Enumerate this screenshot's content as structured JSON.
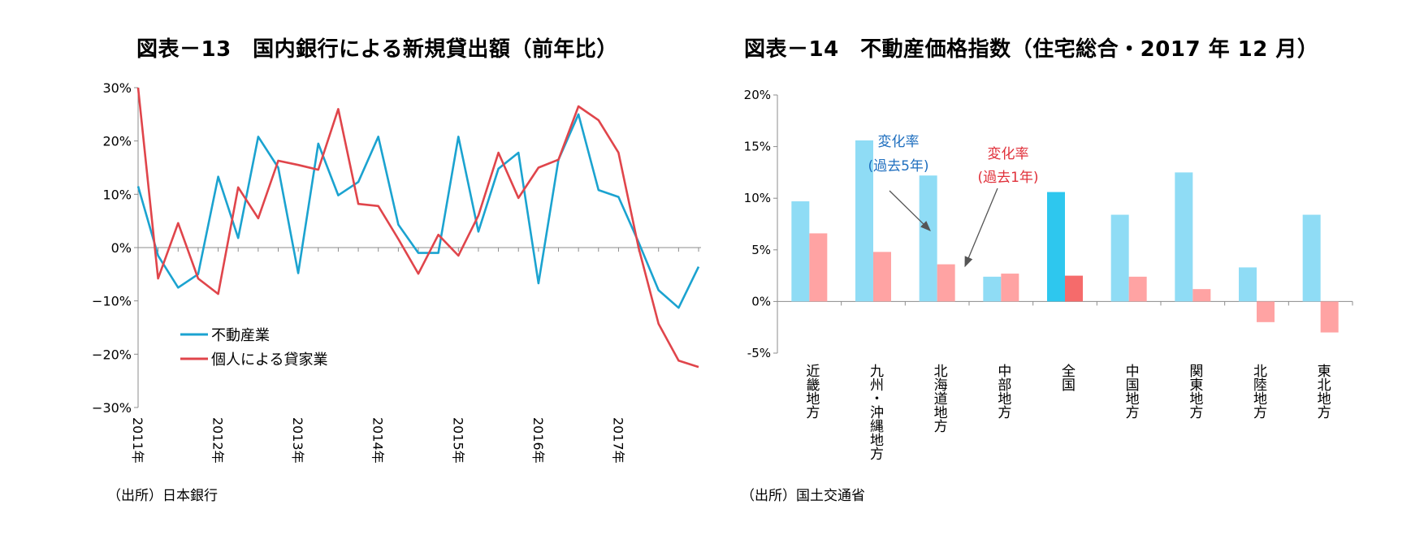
{
  "left": {
    "title": "図表－13　国内銀行による新規貸出額（前年比）",
    "source": "（出所）日本銀行",
    "chart_data": {
      "type": "line",
      "ylim": [
        -30,
        30
      ],
      "y_ticks": [
        "30%",
        "20%",
        "10%",
        "0%",
        "−10%",
        "−20%",
        "−30%"
      ],
      "x_ticks": [
        "2011年",
        "2012年",
        "2013年",
        "2014年",
        "2015年",
        "2016年",
        "2017年"
      ],
      "x_tick_index": [
        0,
        4,
        8,
        12,
        16,
        20,
        24
      ],
      "grid": false,
      "legend_position": "lower-left",
      "series": [
        {
          "name": "不動産業",
          "color": "#1ba3d0",
          "values": [
            11.5,
            -1.5,
            -7.5,
            -5.0,
            13.3,
            1.8,
            20.8,
            15.0,
            -4.8,
            19.5,
            9.8,
            12.3,
            20.8,
            4.3,
            -1.0,
            -1.0,
            20.8,
            3.0,
            14.8,
            17.8,
            -6.7,
            16.5,
            25.0,
            10.8,
            9.5,
            1.0,
            -8.0,
            -11.3,
            -3.6
          ]
        },
        {
          "name": "個人による貸家業",
          "color": "#e0454b",
          "values": [
            30.0,
            -5.8,
            4.6,
            -5.8,
            -8.7,
            11.3,
            5.5,
            16.3,
            15.5,
            14.6,
            26.0,
            8.2,
            7.8,
            1.6,
            -4.9,
            2.4,
            -1.5,
            6.0,
            17.8,
            9.3,
            15.0,
            16.5,
            26.5,
            23.9,
            17.8,
            0.0,
            -14.3,
            -21.2,
            -22.4
          ]
        }
      ]
    }
  },
  "right": {
    "title": "図表－14　不動産価格指数（住宅総合・2017 年 12 月）",
    "source": "（出所）国土交通省",
    "chart_data": {
      "type": "bar",
      "ylim": [
        -5,
        20
      ],
      "y_ticks": [
        "20%",
        "15%",
        "10%",
        "5%",
        "0%",
        "-5%"
      ],
      "categories": [
        "近畿地方",
        "九州・沖縄地方",
        "北海道地方",
        "中部地方",
        "全国",
        "中国地方",
        "関東地方",
        "北陸地方",
        "東北地方"
      ],
      "grid": false,
      "series": [
        {
          "name": "変化率（過去5年）",
          "color": "#8fdcf5",
          "highlight_color": "#2ec7ee",
          "values": [
            9.7,
            15.6,
            12.2,
            2.4,
            10.6,
            8.4,
            12.5,
            3.3,
            8.4
          ]
        },
        {
          "name": "変化率（過去1年）",
          "color": "#ffa3a3",
          "highlight_color": "#f56b6b",
          "values": [
            6.6,
            4.8,
            3.6,
            2.7,
            2.5,
            2.4,
            1.2,
            -2.0,
            -3.0
          ]
        }
      ],
      "highlight_category": "全国",
      "annotations": [
        {
          "line1": "変化率",
          "line2": "(過去5年)",
          "color": "#1f6fbf"
        },
        {
          "line1": "変化率",
          "line2": "(過去1年)",
          "color": "#e0303a"
        }
      ]
    }
  }
}
